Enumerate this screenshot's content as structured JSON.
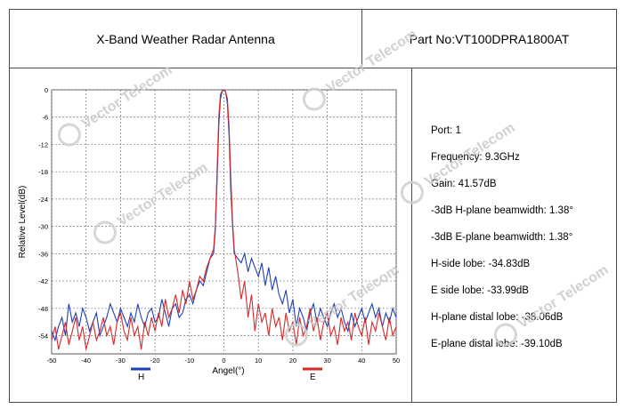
{
  "header": {
    "title": "X-Band Weather Radar Antenna",
    "part_no": "Part No:VT100DPRA1800AT"
  },
  "watermark": "Vector Telecom",
  "specs": [
    "Port: 1",
    "Frequency: 9.3GHz",
    "Gain: 41.57dB",
    "-3dB H-plane beamwidth: 1.38°",
    "-3dB E-plane beamwidth: 1.38°",
    "H-side lobe: -34.83dB",
    "E side lobe: -33.99dB",
    "H-plane distal lobe: -38.06dB",
    "E-plane distal lobe: -39.10dB"
  ],
  "chart_data": {
    "type": "line",
    "title": "",
    "xlabel": "Angel(°)",
    "ylabel": "Relative Level(dB)",
    "xlim": [
      -50,
      50
    ],
    "ylim": [
      -58,
      0
    ],
    "xticks": [
      -50,
      -40,
      -30,
      -20,
      -10,
      0,
      10,
      20,
      30,
      40,
      50
    ],
    "yticks": [
      0,
      -6,
      -12,
      -18,
      -24,
      -30,
      -36,
      -42,
      -48,
      -54
    ],
    "grid": true,
    "series": [
      {
        "name": "H",
        "color": "#1f3fb4",
        "x": [
          -50,
          -49,
          -48,
          -47,
          -46,
          -45,
          -44,
          -43,
          -42,
          -41,
          -40,
          -39,
          -38,
          -37,
          -36,
          -35,
          -34,
          -33,
          -32,
          -31,
          -30,
          -29,
          -28,
          -27,
          -26,
          -25,
          -24,
          -23,
          -22,
          -21,
          -20,
          -19,
          -18,
          -17,
          -16,
          -15,
          -14,
          -13,
          -12,
          -11,
          -10,
          -9,
          -8,
          -7,
          -6,
          -5,
          -4,
          -3,
          -2.5,
          -2,
          -1.5,
          -1,
          -0.5,
          0,
          0.5,
          1,
          1.5,
          2,
          2.5,
          3,
          4,
          5,
          6,
          7,
          8,
          9,
          10,
          11,
          12,
          13,
          14,
          15,
          16,
          17,
          18,
          19,
          20,
          21,
          22,
          23,
          24,
          25,
          26,
          27,
          28,
          29,
          30,
          31,
          32,
          33,
          34,
          35,
          36,
          37,
          38,
          39,
          40,
          41,
          42,
          43,
          44,
          45,
          46,
          47,
          48,
          49,
          50
        ],
        "y": [
          -53,
          -55,
          -52,
          -50,
          -54,
          -47,
          -51,
          -49,
          -52,
          -48,
          -50,
          -53,
          -51,
          -49,
          -54,
          -52,
          -50,
          -47,
          -49,
          -51,
          -48,
          -50,
          -52,
          -49,
          -51,
          -47,
          -50,
          -52,
          -49,
          -48,
          -51,
          -50,
          -46,
          -49,
          -52,
          -48,
          -47,
          -50,
          -49,
          -46,
          -45,
          -47,
          -44,
          -42,
          -43,
          -40,
          -37,
          -36,
          -31,
          -20,
          -8,
          -2,
          -0.3,
          0,
          -0.5,
          -3,
          -10,
          -22,
          -30,
          -36,
          -37,
          -38,
          -36,
          -40,
          -37,
          -39,
          -41,
          -38,
          -43,
          -39,
          -44,
          -41,
          -45,
          -47,
          -44,
          -49,
          -46,
          -52,
          -48,
          -50,
          -53,
          -49,
          -47,
          -51,
          -48,
          -50,
          -52,
          -49,
          -47,
          -50,
          -48,
          -51,
          -53,
          -49,
          -52,
          -50,
          -48,
          -51,
          -49,
          -47,
          -50,
          -48,
          -52,
          -49,
          -51,
          -48,
          -50
        ]
      },
      {
        "name": "E",
        "color": "#d42a2a",
        "x": [
          -50,
          -49,
          -48,
          -47,
          -46,
          -45,
          -44,
          -43,
          -42,
          -41,
          -40,
          -39,
          -38,
          -37,
          -36,
          -35,
          -34,
          -33,
          -32,
          -31,
          -30,
          -29,
          -28,
          -27,
          -26,
          -25,
          -24,
          -23,
          -22,
          -21,
          -20,
          -19,
          -18,
          -17,
          -16,
          -15,
          -14,
          -13,
          -12,
          -11,
          -10,
          -9,
          -8,
          -7,
          -6,
          -5,
          -4,
          -3,
          -2.5,
          -2,
          -1.5,
          -1,
          -0.5,
          0,
          0.5,
          1,
          1.5,
          2,
          2.5,
          3,
          4,
          5,
          6,
          7,
          8,
          9,
          10,
          11,
          12,
          13,
          14,
          15,
          16,
          17,
          18,
          19,
          20,
          21,
          22,
          23,
          24,
          25,
          26,
          27,
          28,
          29,
          30,
          31,
          32,
          33,
          34,
          35,
          36,
          37,
          38,
          39,
          40,
          41,
          42,
          43,
          44,
          45,
          46,
          47,
          48,
          49,
          50
        ],
        "y": [
          -55,
          -52,
          -57,
          -54,
          -51,
          -56,
          -53,
          -50,
          -55,
          -52,
          -57,
          -54,
          -51,
          -55,
          -53,
          -50,
          -54,
          -52,
          -56,
          -51,
          -49,
          -53,
          -55,
          -50,
          -54,
          -52,
          -57,
          -51,
          -54,
          -50,
          -53,
          -49,
          -52,
          -46,
          -50,
          -48,
          -45,
          -49,
          -44,
          -47,
          -42,
          -46,
          -44,
          -41,
          -42,
          -39,
          -37,
          -35,
          -30,
          -18,
          -6,
          -1,
          -0.2,
          0,
          -0.4,
          -2,
          -8,
          -19,
          -29,
          -35,
          -40,
          -46,
          -42,
          -50,
          -45,
          -53,
          -47,
          -51,
          -49,
          -54,
          -48,
          -52,
          -50,
          -55,
          -49,
          -53,
          -51,
          -56,
          -50,
          -54,
          -52,
          -48,
          -53,
          -50,
          -55,
          -51,
          -49,
          -54,
          -52,
          -56,
          -50,
          -53,
          -51,
          -55,
          -49,
          -52,
          -54,
          -50,
          -56,
          -51,
          -53,
          -49,
          -52,
          -55,
          -50,
          -54,
          -52
        ]
      }
    ]
  }
}
